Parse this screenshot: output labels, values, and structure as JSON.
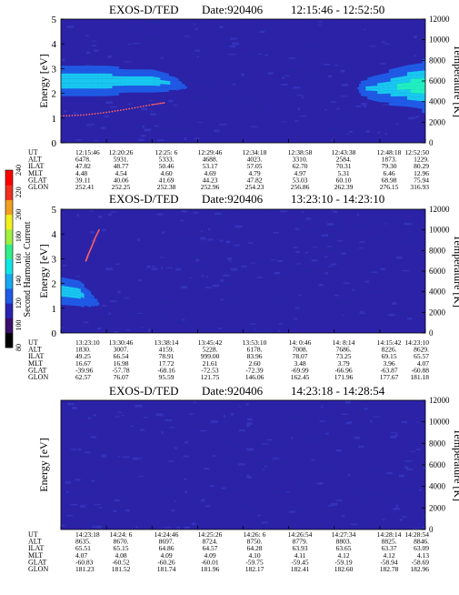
{
  "colors": {
    "spectrogram_background": "#2b22a8",
    "spectrogram_band_low": "#1f5be6",
    "spectrogram_band_mid": "#18c8f0",
    "spectrogram_band_high": "#20f0c0",
    "spectrogram_peak": "#40ff80",
    "overlay_dots": "#ff6060",
    "colorbar": [
      "#000000",
      "#3b0e6b",
      "#2a23b2",
      "#1f5be6",
      "#18a8f0",
      "#10e6e6",
      "#30f08a",
      "#a0f040",
      "#f0f020",
      "#f0a020",
      "#f03020",
      "#ff0000"
    ]
  },
  "colorbar": {
    "label": "Second Harmonic Current",
    "ticks": [
      "80",
      "100",
      "120",
      "140",
      "160",
      "180",
      "200",
      "220",
      "240"
    ]
  },
  "chart_data": [
    {
      "type": "heatmap",
      "title_left": "EXOS-D/TED",
      "title_date": "Date:920406",
      "title_time": "12:15:46 - 12:52:50",
      "ylabel": "Energy [eV]",
      "y2label": "Temperature [K]",
      "ylim": [
        0,
        5
      ],
      "y_ticks": [
        "0",
        "1",
        "2",
        "3",
        "4",
        "5"
      ],
      "y2lim": [
        0,
        12000
      ],
      "y2_ticks": [
        "0",
        "2000",
        "4000",
        "6000",
        "8000",
        "10000",
        "12000"
      ],
      "x_index": [
        0,
        1,
        2,
        3,
        4,
        5,
        6,
        7,
        8
      ],
      "band_profile": [
        {
          "t": 0.0,
          "center": 2.5,
          "half": 0.55,
          "level": 0.65
        },
        {
          "t": 1.0,
          "center": 2.5,
          "half": 0.55,
          "level": 0.62
        },
        {
          "t": 1.5,
          "center": 2.5,
          "half": 0.5,
          "level": 0.6
        },
        {
          "t": 2.0,
          "center": 2.5,
          "half": 0.5,
          "level": 0.58
        },
        {
          "t": 2.5,
          "center": 2.4,
          "half": 0.35,
          "level": 0.45
        },
        {
          "t": 2.8,
          "center": 2.2,
          "half": 0.2,
          "level": 0.25
        },
        {
          "t": 3.5,
          "center": 2.2,
          "half": 0.05,
          "level": 0.0
        },
        {
          "t": 5.0,
          "center": 2.2,
          "half": 0.05,
          "level": 0.0
        },
        {
          "t": 6.4,
          "center": 2.2,
          "half": 0.05,
          "level": 0.0
        },
        {
          "t": 6.6,
          "center": 2.2,
          "half": 0.4,
          "level": 0.45
        },
        {
          "t": 7.0,
          "center": 2.2,
          "half": 0.6,
          "level": 0.55
        },
        {
          "t": 7.6,
          "center": 2.3,
          "half": 0.75,
          "level": 0.72
        },
        {
          "t": 8.0,
          "center": 2.3,
          "half": 0.85,
          "level": 0.85
        }
      ],
      "temperature_trace": [
        {
          "t": 0.0,
          "temp": 2600
        },
        {
          "t": 0.5,
          "temp": 2700
        },
        {
          "t": 1.0,
          "temp": 2950
        },
        {
          "t": 1.5,
          "temp": 3300
        },
        {
          "t": 2.0,
          "temp": 3700
        },
        {
          "t": 2.3,
          "temp": 3900
        }
      ],
      "rows": [
        {
          "label": "UT",
          "values": [
            "12:15:46",
            "12:20:26",
            "12:25: 6",
            "12:29:46",
            "12:34:18",
            "12:38:58",
            "12:43:38",
            "12:48:18",
            "12:52:50"
          ]
        },
        {
          "label": "ALT",
          "values": [
            "6478.",
            "5931.",
            "5333.",
            "4688.",
            "4023.",
            "3310.",
            "2584.",
            "1873.",
            "1229."
          ]
        },
        {
          "label": "ILAT",
          "values": [
            "47.82",
            "48.77",
            "50.46",
            "53.17",
            "57.05",
            "62.70",
            "70.31",
            "79.30",
            "80.29"
          ]
        },
        {
          "label": "MLT",
          "values": [
            "4.48",
            "4.54",
            "4.60",
            "4.69",
            "4.79",
            "4.97",
            "5.31",
            "6.46",
            "12.96"
          ]
        },
        {
          "label": "GLAT",
          "values": [
            "39.11",
            "40.06",
            "41.69",
            "44.23",
            "47.82",
            "53.03",
            "60.10",
            "68.98",
            "75.94"
          ]
        },
        {
          "label": "GLON",
          "values": [
            "252.41",
            "252.25",
            "252.38",
            "252.96",
            "254.23",
            "256.86",
            "262.39",
            "276.15",
            "316.93"
          ]
        }
      ]
    },
    {
      "type": "heatmap",
      "title_left": "EXOS-D/TED",
      "title_date": "Date:920406",
      "title_time": "13:23:10 - 14:23:10",
      "ylabel": "Energy [eV]",
      "y2label": "Temperature [K]",
      "ylim": [
        0,
        5
      ],
      "y_ticks": [
        "0",
        "1",
        "2",
        "3",
        "4",
        "5"
      ],
      "y2lim": [
        0,
        12000
      ],
      "y2_ticks": [
        "0",
        "2000",
        "4000",
        "6000",
        "8000",
        "10000",
        "12000"
      ],
      "x_index": [
        0,
        1,
        2,
        3,
        4,
        5,
        6,
        7,
        8
      ],
      "band_profile": [
        {
          "t": 0.0,
          "center": 1.7,
          "half": 0.6,
          "level": 0.6
        },
        {
          "t": 0.4,
          "center": 1.6,
          "half": 0.55,
          "level": 0.55
        },
        {
          "t": 0.8,
          "center": 1.2,
          "half": 0.35,
          "level": 0.3
        },
        {
          "t": 1.0,
          "center": 1.0,
          "half": 0.15,
          "level": 0.1
        },
        {
          "t": 1.5,
          "center": 1.0,
          "half": 0.05,
          "level": 0.0
        },
        {
          "t": 8.0,
          "center": 1.0,
          "half": 0.05,
          "level": 0.0
        }
      ],
      "temperature_trace": [
        {
          "t": 0.55,
          "temp": 7000
        },
        {
          "t": 0.6,
          "temp": 7600
        },
        {
          "t": 0.68,
          "temp": 8400
        },
        {
          "t": 0.75,
          "temp": 9200
        },
        {
          "t": 0.85,
          "temp": 10100
        }
      ],
      "rows": [
        {
          "label": "UT",
          "values": [
            "13:23:10",
            "13:30:46",
            "13:38:14",
            "13:45:42",
            "13:53:10",
            "14: 0:46",
            "14: 8:14",
            "14:15:42",
            "14:23:10"
          ]
        },
        {
          "label": "ALT",
          "values": [
            "1830.",
            "3007.",
            "4159.",
            "5228.",
            "6178.",
            "7008.",
            "7686.",
            "8226.",
            "8629."
          ]
        },
        {
          "label": "ILAT",
          "values": [
            "49.25",
            "66.54",
            "78.91",
            "999.00",
            "83.96",
            "78.07",
            "73.25",
            "69.15",
            "65.57"
          ]
        },
        {
          "label": "MLT",
          "values": [
            "16.67",
            "16.98",
            "17.72",
            "21.61",
            "2.60",
            "3.48",
            "3.79",
            "3.96",
            "4.07"
          ]
        },
        {
          "label": "GLAT",
          "values": [
            "-39.96",
            "-57.78",
            "-68.16",
            "-72.53",
            "-72.39",
            "-69.99",
            "-66.96",
            "-63.87",
            "-60.88"
          ]
        },
        {
          "label": "GLON",
          "values": [
            "62.57",
            "76.07",
            "95.59",
            "121.75",
            "146.06",
            "162.45",
            "171.96",
            "177.67",
            "181.18"
          ]
        }
      ]
    },
    {
      "type": "heatmap",
      "title_left": "EXOS-D/TED",
      "title_date": "Date:920406",
      "title_time": "14:23:18 - 14:28:54",
      "ylabel": "Energy [eV]",
      "y2label": "Temperature [K]",
      "ylim": [
        0,
        5
      ],
      "y_ticks": [],
      "y2lim": [
        0,
        12000
      ],
      "y2_ticks": [
        "0",
        "2000",
        "4000",
        "6000",
        "8000",
        "10000",
        "12000"
      ],
      "x_index": [
        0,
        1,
        2,
        3,
        4,
        5,
        6,
        7,
        8
      ],
      "band_profile": [],
      "temperature_trace": [],
      "rows": [
        {
          "label": "UT",
          "values": [
            "14:23:18",
            "14:24: 6",
            "14:24:46",
            "14:25:26",
            "14:26: 6",
            "14:26:54",
            "14:27:34",
            "14:28:14",
            "14:28:54"
          ]
        },
        {
          "label": "ALT",
          "values": [
            "8635.",
            "8670.",
            "8697.",
            "8724.",
            "8750.",
            "8779.",
            "8803.",
            "8825.",
            "8846."
          ]
        },
        {
          "label": "ILAT",
          "values": [
            "65.51",
            "65.15",
            "64.86",
            "64.57",
            "64.28",
            "63.93",
            "63.65",
            "63.37",
            "63.09"
          ]
        },
        {
          "label": "MLT",
          "values": [
            "4.07",
            "4.08",
            "4.09",
            "4.09",
            "4.10",
            "4.11",
            "4.12",
            "4.12",
            "4.13"
          ]
        },
        {
          "label": "GLAT",
          "values": [
            "-60.83",
            "-60.52",
            "-60.26",
            "-60.01",
            "-59.75",
            "-59.45",
            "-59.19",
            "-58.94",
            "-58.69"
          ]
        },
        {
          "label": "GLON",
          "values": [
            "181.23",
            "181.52",
            "181.74",
            "181.96",
            "182.17",
            "182.41",
            "182.60",
            "182.78",
            "182.96"
          ]
        }
      ]
    }
  ]
}
